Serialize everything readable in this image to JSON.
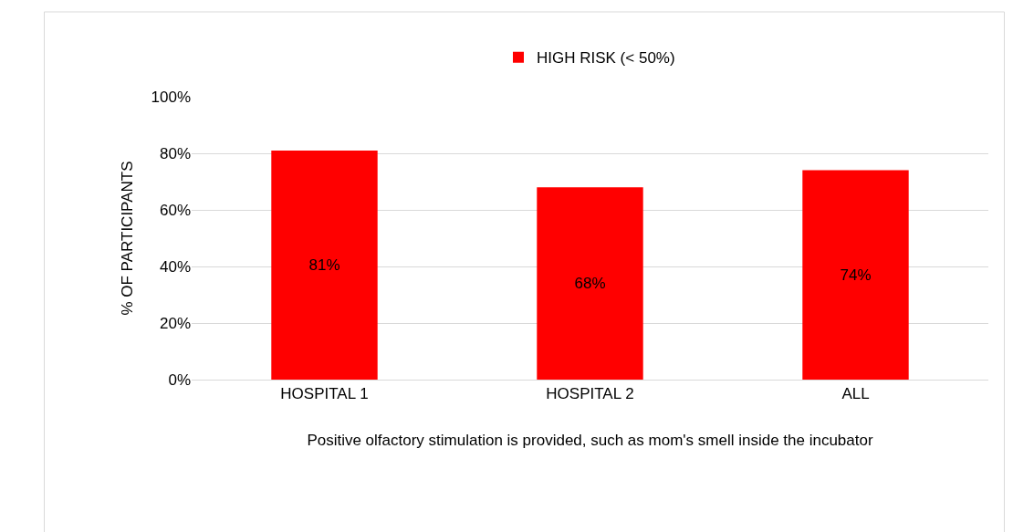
{
  "chart_data": {
    "type": "bar",
    "xlabel": "Positive olfactory stimulation is provided, such as mom's smell inside the incubator",
    "ylabel": "% OF PARTICIPANTS",
    "categories": [
      "HOSPITAL 1",
      "HOSPITAL 2",
      "ALL"
    ],
    "series": [
      {
        "name": "HIGH RISK (< 50%)",
        "color": "#ff0000",
        "values": [
          81,
          68,
          74
        ],
        "value_labels": [
          "81%",
          "68%",
          "74%"
        ]
      }
    ],
    "ylim": [
      0,
      100
    ],
    "yticks": [
      {
        "value": 0,
        "label": "0%"
      },
      {
        "value": 20,
        "label": "20%"
      },
      {
        "value": 40,
        "label": "40%"
      },
      {
        "value": 60,
        "label": "60%"
      },
      {
        "value": 80,
        "label": "80%"
      },
      {
        "value": 100,
        "label": "100%"
      }
    ],
    "grid": "y",
    "legend": "top"
  }
}
